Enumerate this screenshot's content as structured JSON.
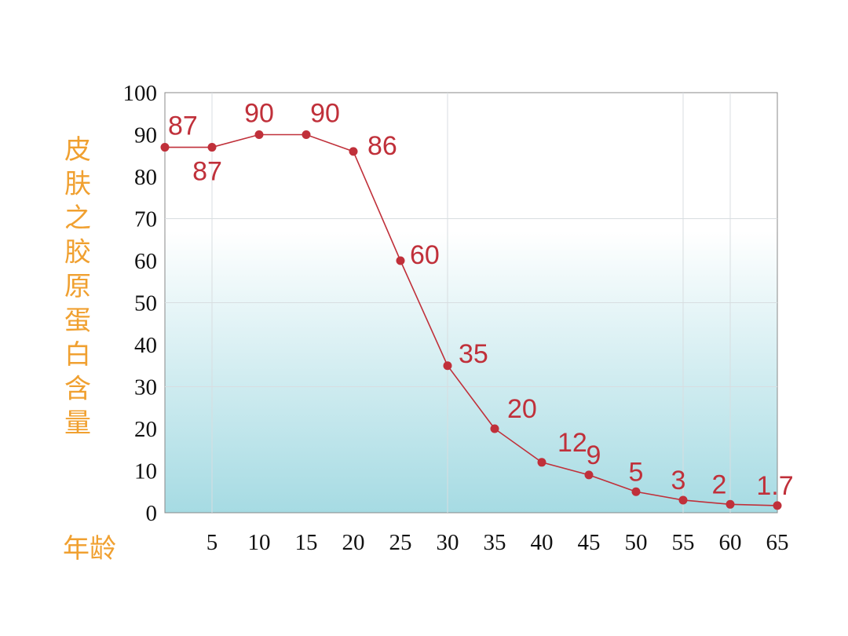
{
  "chart_data": {
    "type": "line",
    "title": "",
    "ylabel": "皮肤之胶原蛋白含量",
    "xlabel": "年龄",
    "x": [
      0,
      5,
      10,
      15,
      20,
      25,
      30,
      35,
      40,
      45,
      50,
      55,
      60,
      65
    ],
    "series": [
      {
        "values": [
          87,
          87,
          90,
          90,
          86,
          60,
          35,
          20,
          12,
          9,
          5,
          3,
          2,
          1.7
        ],
        "data_labels": [
          "87",
          "87",
          "90",
          "90",
          "86",
          "60",
          "35",
          "20",
          "12",
          "9",
          "5",
          "3",
          "2",
          "1.7"
        ]
      }
    ],
    "xticks": [
      "5",
      "10",
      "15",
      "20",
      "25",
      "30",
      "35",
      "40",
      "45",
      "50",
      "55",
      "60",
      "65"
    ],
    "yticks": [
      "0",
      "10",
      "20",
      "30",
      "40",
      "50",
      "60",
      "70",
      "80",
      "90",
      "100"
    ],
    "xlim": [
      0,
      65
    ],
    "ylim": [
      0,
      100
    ],
    "grid": true,
    "colors": {
      "line": "#c0303a",
      "axis_title": "#f0a030",
      "fill_bottom": "#a6dbe3"
    }
  }
}
